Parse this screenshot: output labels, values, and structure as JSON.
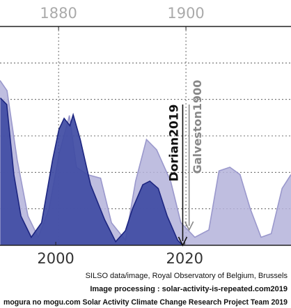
{
  "chart_data": {
    "type": "area",
    "xlim": [
      1991.35,
      2036.5
    ],
    "xticks": [
      2000,
      2020
    ],
    "x2lim": [
      1870.8,
      1916.5
    ],
    "x2ticks": [
      1880,
      1900
    ],
    "ylim": [
      0,
      300
    ],
    "yticks": [
      50,
      100,
      150,
      200,
      250
    ],
    "grid": true,
    "series": [
      {
        "color": "#b4b3da",
        "outline": "#9a98cc",
        "axis": "x2",
        "x": [
          1870.8,
          1871.9,
          1873.5,
          1875.2,
          1876.8,
          1878.5,
          1880.1,
          1881.7,
          1882.8,
          1884.5,
          1886.6,
          1888.3,
          1890.5,
          1892.1,
          1893.8,
          1895.4,
          1897.6,
          1899.2,
          1901.4,
          1903.6,
          1905.2,
          1906.9,
          1908.5,
          1910.1,
          1911.8,
          1913.4,
          1915.1,
          1916.5
        ],
        "values": [
          226,
          212,
          117,
          40,
          11,
          50,
          126,
          178,
          107,
          97,
          92,
          31,
          7,
          88,
          145,
          131,
          88,
          31,
          11,
          21,
          102,
          107,
          97,
          50,
          11,
          16,
          78,
          97
        ]
      },
      {
        "color": "#3f4ba3",
        "outline": "#1c2580",
        "axis": "x",
        "x": [
          1991.4,
          1992.4,
          1993.5,
          1994.6,
          1996.2,
          1997.8,
          1999.5,
          2000.5,
          2001.3,
          2002.2,
          2002.7,
          2003.8,
          2005.4,
          2007.6,
          2009.3,
          2010.8,
          2011.9,
          2013.5,
          2014.6,
          2015.9,
          2017.3,
          2018.9,
          2019.7
        ],
        "values": [
          202,
          193,
          97,
          40,
          11,
          31,
          117,
          159,
          174,
          164,
          179,
          145,
          83,
          35,
          5,
          20,
          50,
          83,
          88,
          78,
          40,
          7,
          0
        ]
      }
    ],
    "annotations": [
      {
        "text": "Dorian2019",
        "x": 2019.7,
        "axis": "x",
        "color": "#111111"
      },
      {
        "text": "Galveston1900",
        "x": 1900.5,
        "axis": "x2",
        "color": "#888888"
      }
    ],
    "credits": [
      "SILSO data/image, Royal Observatory of Belgium, Brussels",
      "Image processing : solar-activity-is-repeated.com2019",
      "mogura no mogu.com Solar Activity Climate Change Research Project Team 2019"
    ]
  }
}
